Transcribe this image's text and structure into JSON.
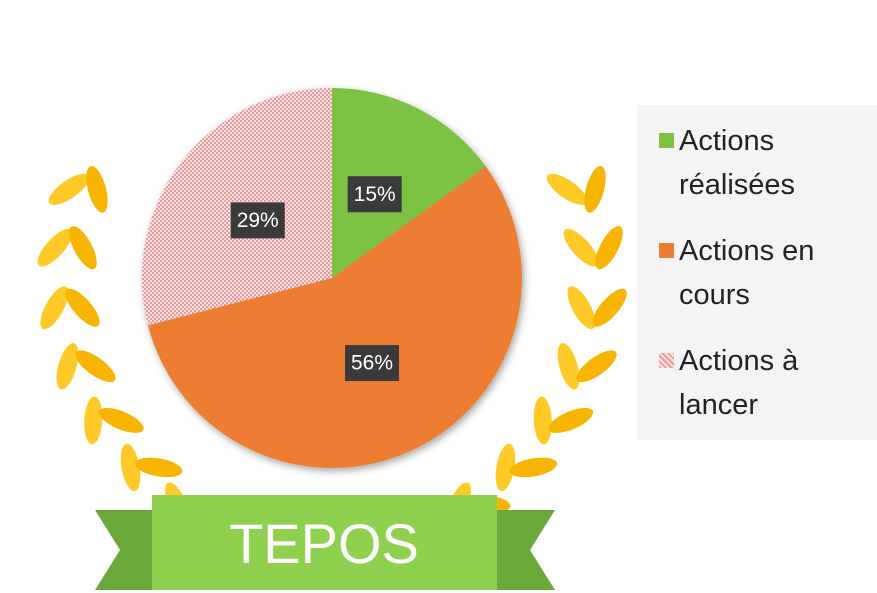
{
  "chart_data": {
    "type": "pie",
    "categories": [
      "Actions réalisées",
      "Actions en cours",
      "Actions à lancer"
    ],
    "values": [
      15,
      56,
      29
    ],
    "value_labels": [
      "15%",
      "56%",
      "29%"
    ],
    "colors": [
      "#7dc242",
      "#ed7d31",
      "#f2b3b3"
    ],
    "banner": "TEPOS",
    "legend": "right"
  }
}
